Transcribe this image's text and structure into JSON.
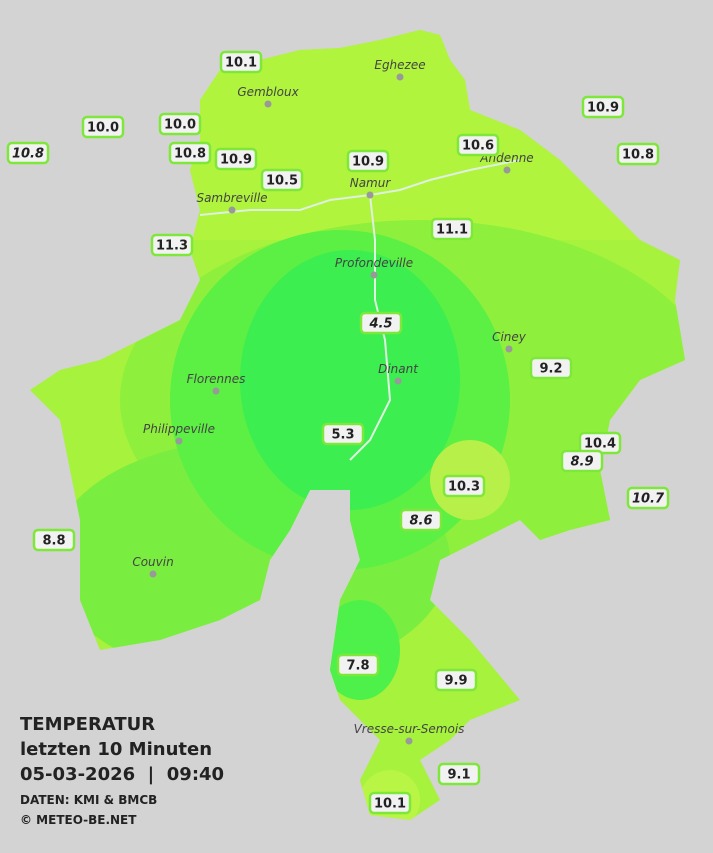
{
  "legend": {
    "title": "TEMPERATUR",
    "subtitle": "letzten 10 Minuten",
    "datetime": "05-03-2026  |  09:40",
    "source": "DATEN: KMI & BMCB",
    "copyright": "© METEO-BE.NET"
  },
  "cities": [
    "Eghezee",
    "Gembloux",
    "Andenne",
    "Namur",
    "Sambreville",
    "Profondeville",
    "Ciney",
    "Dinant",
    "Florennes",
    "Philippeville",
    "Couvin",
    "Vresse-sur-Semois"
  ],
  "readings": [
    {
      "value": "10.1"
    },
    {
      "value": "10.0"
    },
    {
      "value": "10.0"
    },
    {
      "value": "10.8",
      "italic": true
    },
    {
      "value": "10.8"
    },
    {
      "value": "10.9"
    },
    {
      "value": "10.5"
    },
    {
      "value": "10.9"
    },
    {
      "value": "10.6"
    },
    {
      "value": "10.9"
    },
    {
      "value": "10.8"
    },
    {
      "value": "11.3"
    },
    {
      "value": "11.1"
    },
    {
      "value": "4.5",
      "italic": true
    },
    {
      "value": "9.2"
    },
    {
      "value": "5.3"
    },
    {
      "value": "10.4"
    },
    {
      "value": "8.9",
      "italic": true
    },
    {
      "value": "10.3"
    },
    {
      "value": "10.7",
      "italic": true
    },
    {
      "value": "8.6",
      "italic": true
    },
    {
      "value": "8.8"
    },
    {
      "value": "7.8"
    },
    {
      "value": "9.9"
    },
    {
      "value": "9.1"
    },
    {
      "value": "10.1"
    }
  ]
}
